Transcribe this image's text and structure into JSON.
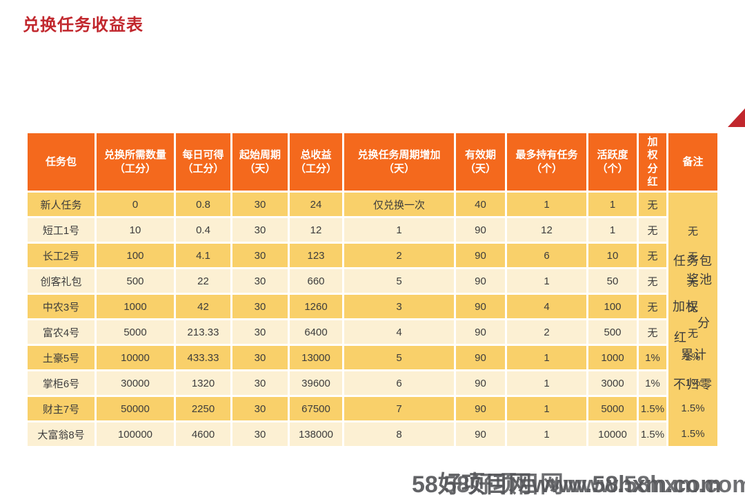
{
  "page": {
    "title": "兑换任务收益表"
  },
  "table": {
    "headers": [
      "任务包",
      "兑换所需数量（工分）",
      "每日可得（工分）",
      "起始周期（天）",
      "总收益（工分）",
      "兑换任务周期增加（天）",
      "有效期（天）",
      "最多持有任务（个）",
      "活跃度（个）",
      "加权分红",
      "备注"
    ],
    "rows": [
      [
        "新人任务",
        "0",
        "0.8",
        "30",
        "24",
        "仅兑换一次",
        "40",
        "1",
        "1",
        "无"
      ],
      [
        "短工1号",
        "10",
        "0.4",
        "30",
        "12",
        "1",
        "90",
        "12",
        "1",
        "无"
      ],
      [
        "长工2号",
        "100",
        "4.1",
        "30",
        "123",
        "2",
        "90",
        "6",
        "10",
        "无"
      ],
      [
        "创客礼包",
        "500",
        "22",
        "30",
        "660",
        "5",
        "90",
        "1",
        "50",
        "无"
      ],
      [
        "中农3号",
        "1000",
        "42",
        "30",
        "1260",
        "3",
        "90",
        "4",
        "100",
        "无"
      ],
      [
        "富农4号",
        "5000",
        "213.33",
        "30",
        "6400",
        "4",
        "90",
        "2",
        "500",
        "无"
      ],
      [
        "土豪5号",
        "10000",
        "433.33",
        "30",
        "13000",
        "5",
        "90",
        "1",
        "1000",
        "1%"
      ],
      [
        "掌柜6号",
        "30000",
        "1320",
        "30",
        "39600",
        "6",
        "90",
        "1",
        "3000",
        "1%"
      ],
      [
        "财主7号",
        "50000",
        "2250",
        "30",
        "67500",
        "7",
        "90",
        "1",
        "5000",
        "1.5%"
      ],
      [
        "大富翁8号",
        "100000",
        "4600",
        "30",
        "138000",
        "8",
        "90",
        "1",
        "10000",
        "1.5%"
      ]
    ],
    "remarks": {
      "row_values": [
        "",
        "无",
        "无",
        "无",
        "无",
        "无",
        "1%",
        "1%",
        "1.5%",
        "1.5%"
      ],
      "annotation_lines": [
        "任务包",
        "奖池",
        "加权",
        "分",
        "红",
        "累计",
        "不归零"
      ],
      "annotation_full_text": "任务包奖池加权分红累计不归零"
    }
  },
  "watermark": {
    "text": "58好项目网www.58hxm.com"
  },
  "colors": {
    "header_bg": "#F4691D",
    "row_dark": "#F9D06A",
    "row_light": "#FCF0D3",
    "title_red": "#C1272D",
    "cell_text": "#3C3C3C",
    "watermark_gray": "#55565A"
  }
}
